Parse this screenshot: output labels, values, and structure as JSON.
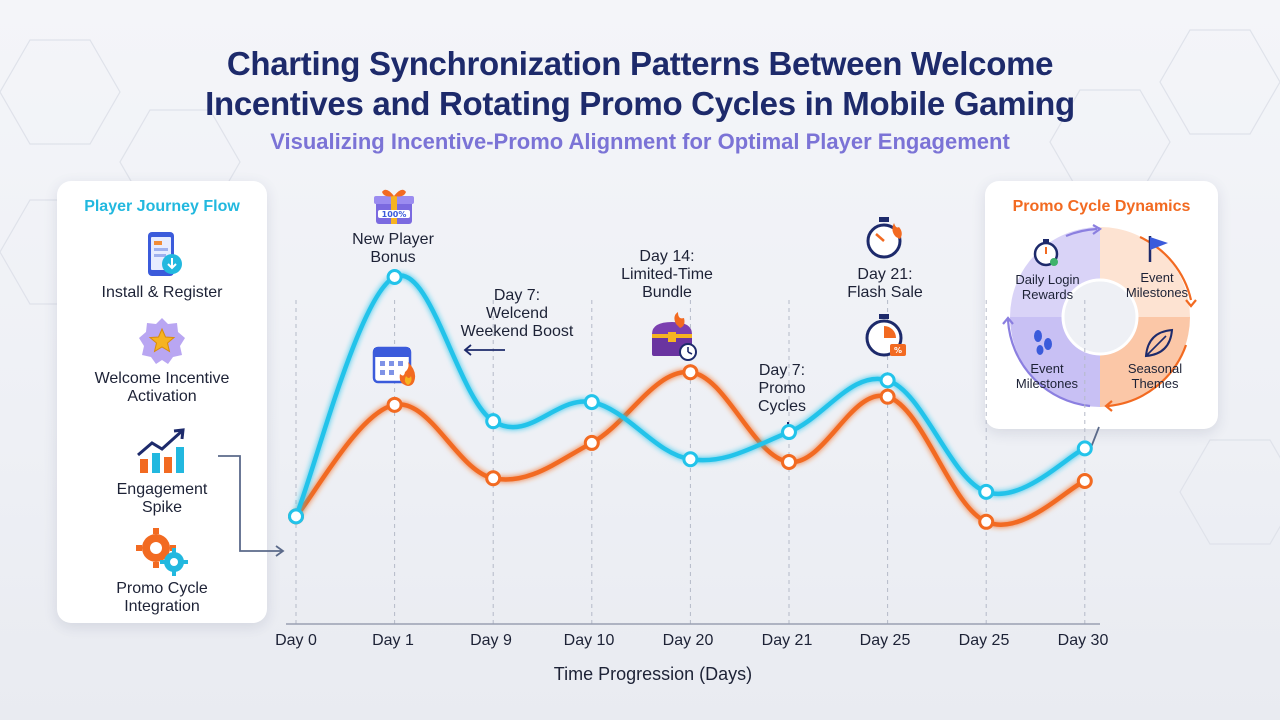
{
  "title_line1": "Charting Synchronization Patterns Between Welcome",
  "title_line2": "Incentives and Rotating Promo Cycles in Mobile Gaming",
  "subtitle": "Visualizing Incentive-Promo Alignment for Optimal Player Engagement",
  "journey": {
    "title": "Player Journey Flow",
    "steps": [
      {
        "label": "Install & Register",
        "icon": "phone-download-icon"
      },
      {
        "label": "Welcome Incentive\nActivation",
        "icon": "star-badge-icon"
      },
      {
        "label": "Engagement\nSpike",
        "icon": "bar-chart-arrow-icon"
      },
      {
        "label": "Promo Cycle\nIntegration",
        "icon": "gears-icon"
      }
    ]
  },
  "promo_panel": {
    "title": "Promo Cycle Dynamics",
    "segments": [
      {
        "label": "Daily Login\nRewards",
        "icon": "stopwatch-icon"
      },
      {
        "label": "Event\nMilestones",
        "icon": "flag-icon"
      },
      {
        "label": "Seasonal\nThemes",
        "icon": "leaf-icon"
      },
      {
        "label": "Event\nMilestones",
        "icon": "footprints-icon"
      }
    ]
  },
  "annotations": {
    "a1": "New Player\nBonus",
    "a2": "Day 7:\nWelcend\nWeekend Boost",
    "a3": "Day 14:\nLimited-Time\nBundle",
    "a4": "Day 7:\nPromo\nCycles",
    "a5": "Day 21:\nFlash Sale"
  },
  "colors": {
    "welcome": "#22c3ea",
    "promo": "#f26a21",
    "title": "#1d2a6b",
    "subtitle": "#7b73d6"
  },
  "chart_data": {
    "type": "line",
    "xlabel": "Time Progression (Days)",
    "ylabel": "",
    "categories": [
      "Day 0",
      "Day 1",
      "Day 9",
      "Day 10",
      "Day 20",
      "Day 21",
      "Day 25",
      "Day 25",
      "Day 30"
    ],
    "ylim": [
      0,
      100
    ],
    "grid": "vertical dashed",
    "series": [
      {
        "values": [
          12,
          100,
          47,
          54,
          33,
          43,
          62,
          21,
          37
        ]
      },
      {
        "values": [
          12,
          53,
          26,
          39,
          65,
          32,
          56,
          10,
          25
        ]
      }
    ]
  }
}
